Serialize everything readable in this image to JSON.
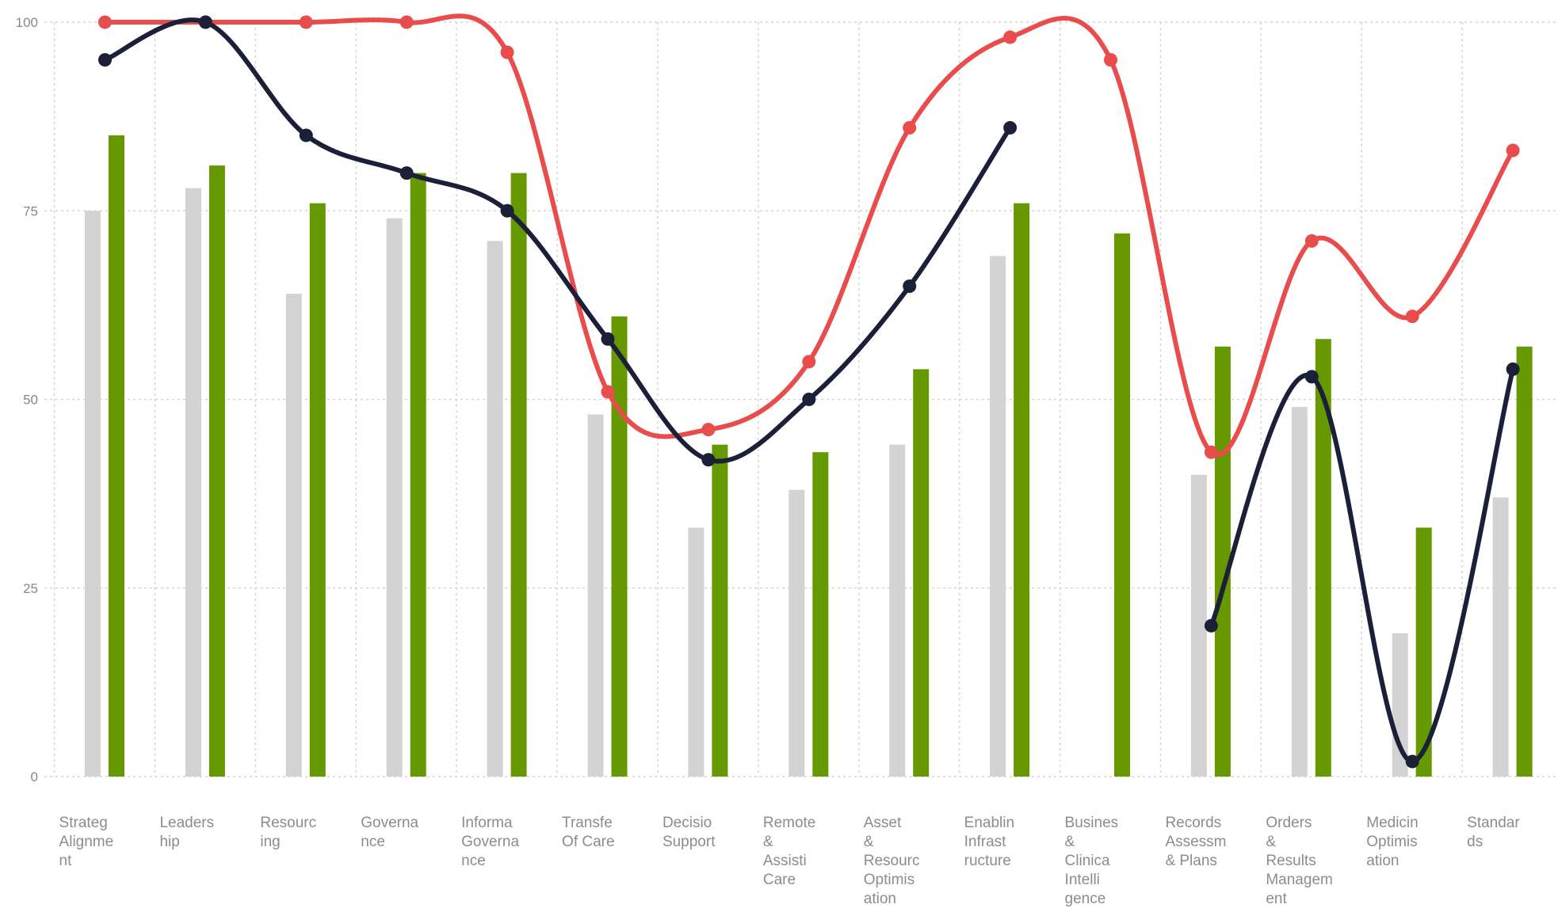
{
  "chart_data": {
    "type": "bar",
    "categories": [
      [
        "Strateg",
        "Alignme",
        "nt"
      ],
      [
        "Leaders",
        "hip"
      ],
      [
        "Resourc",
        "ing"
      ],
      [
        "Governa",
        "nce"
      ],
      [
        "Informa",
        "Governa",
        "nce"
      ],
      [
        "Transfe",
        "Of Care"
      ],
      [
        "Decisio",
        "Support"
      ],
      [
        "Remote",
        "&",
        "Assisti",
        "Care"
      ],
      [
        "Asset",
        "&",
        "Resourc",
        "Optimis",
        "ation"
      ],
      [
        "Enablin",
        "Infrast",
        "ructure"
      ],
      [
        "Busines",
        "&",
        "Clinica",
        "Intelli",
        "gence"
      ],
      [
        "Records",
        "Assessm",
        "& Plans"
      ],
      [
        "Orders",
        "&",
        "Results",
        "Managem",
        "ent"
      ],
      [
        "Medicin",
        "Optimis",
        "ation"
      ],
      [
        "Standar",
        "ds"
      ]
    ],
    "series": [
      {
        "kind": "bar",
        "color": "#d3d3d3",
        "values": [
          75,
          78,
          64,
          74,
          71,
          48,
          33,
          38,
          44,
          69,
          null,
          40,
          49,
          19,
          37
        ]
      },
      {
        "kind": "bar",
        "color": "#669900",
        "values": [
          85,
          81,
          76,
          80,
          80,
          61,
          44,
          43,
          54,
          76,
          72,
          57,
          58,
          33,
          57
        ]
      },
      {
        "kind": "line",
        "color": "#e84c4c",
        "values": [
          100,
          100,
          100,
          100,
          96,
          51,
          46,
          55,
          86,
          98,
          95,
          43,
          71,
          61,
          83
        ]
      },
      {
        "kind": "line",
        "color": "#1b2038",
        "values": [
          95,
          100,
          85,
          80,
          75,
          58,
          42,
          50,
          65,
          86,
          null,
          20,
          53,
          2,
          54
        ]
      }
    ],
    "ylim": [
      0,
      100
    ],
    "yticks": [
      "0",
      "25",
      "50",
      "75",
      "100"
    ],
    "grid": true
  }
}
